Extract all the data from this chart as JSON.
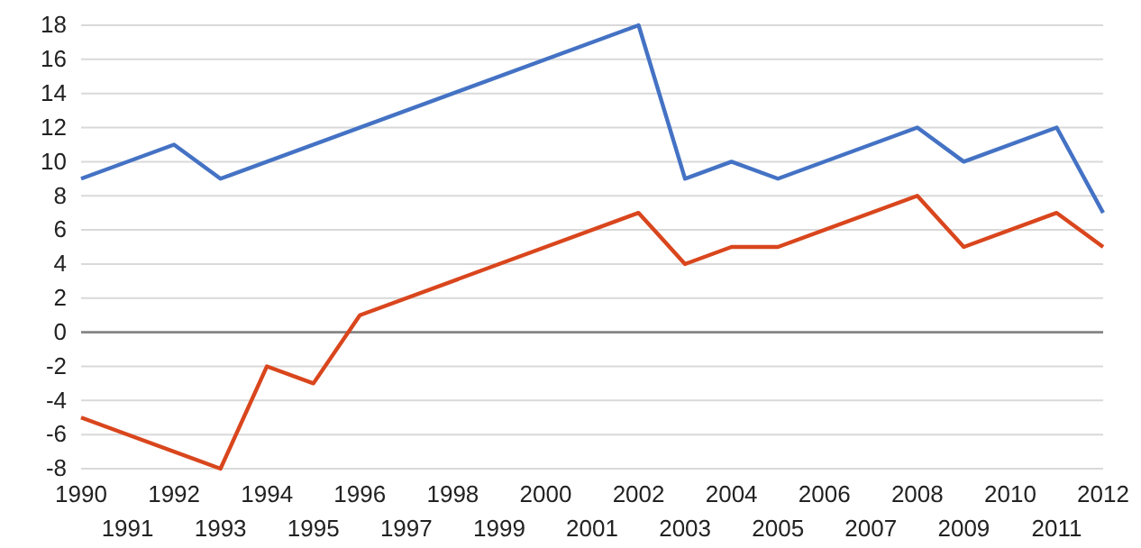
{
  "chart_data": {
    "type": "line",
    "xlim": [
      1990,
      2012
    ],
    "xticks": [
      1990,
      1992,
      1994,
      1996,
      1998,
      2000,
      2002,
      2004,
      2006,
      2008,
      2010,
      2012
    ],
    "x2lim": [
      1990,
      2012
    ],
    "x2ticks": [
      1991,
      1993,
      1995,
      1997,
      1999,
      2001,
      2003,
      2005,
      2007,
      2009,
      2011
    ],
    "ylim": [
      -8,
      18
    ],
    "yticks": [
      -8,
      -6,
      -4,
      -2,
      0,
      2,
      4,
      6,
      8,
      10,
      12,
      14,
      16,
      18
    ],
    "grid": "y",
    "marker": "none",
    "line_style": "solid",
    "series": [
      {
        "color": "#4472c4",
        "x": [
          1990,
          1992,
          1993,
          2002,
          2003,
          2004,
          2005,
          2008,
          2009,
          2011,
          2012
        ],
        "values": [
          9,
          11,
          9,
          18,
          9,
          10,
          9,
          12,
          10,
          12,
          7
        ]
      },
      {
        "color": "#d9461d",
        "x": [
          1990,
          1993,
          1994,
          1995,
          1996,
          2002,
          2003,
          2004,
          2005,
          2008,
          2009,
          2011,
          2012
        ],
        "values": [
          -5,
          -8,
          -2,
          -3,
          1,
          7,
          4,
          5,
          5,
          8,
          5,
          7,
          5
        ]
      }
    ]
  }
}
